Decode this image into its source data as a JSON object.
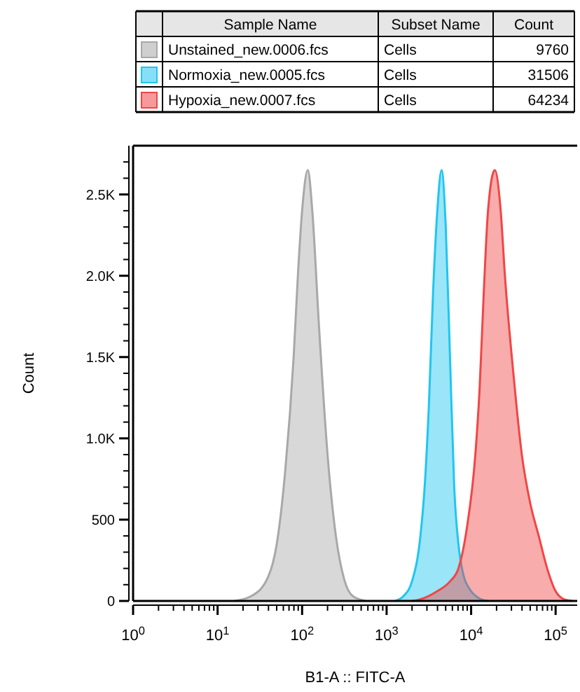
{
  "chart_data": {
    "type": "area",
    "xlabel": "B1-A :: FITC-A",
    "ylabel": "Count",
    "log": "x",
    "legend": "top",
    "grid": false,
    "xlim": [
      1,
      180000
    ],
    "xticks": [
      {
        "value": 1,
        "label": "10$^{0}$"
      },
      {
        "value": 2,
        "label": null
      },
      {
        "value": 3,
        "label": null
      },
      {
        "value": 4,
        "label": null
      },
      {
        "value": 5,
        "label": null
      },
      {
        "value": 6,
        "label": null
      },
      {
        "value": 7,
        "label": null
      },
      {
        "value": 8,
        "label": null
      },
      {
        "value": 9,
        "label": null
      },
      {
        "value": 10,
        "label": "10$^{1}$"
      },
      {
        "value": 20,
        "label": null
      },
      {
        "value": 30,
        "label": null
      },
      {
        "value": 40,
        "label": null
      },
      {
        "value": 50,
        "label": null
      },
      {
        "value": 60,
        "label": null
      },
      {
        "value": 70,
        "label": null
      },
      {
        "value": 80,
        "label": null
      },
      {
        "value": 90,
        "label": null
      },
      {
        "value": 100,
        "label": "10$^{2}$"
      },
      {
        "value": 200,
        "label": null
      },
      {
        "value": 300,
        "label": null
      },
      {
        "value": 400,
        "label": null
      },
      {
        "value": 500,
        "label": null
      },
      {
        "value": 600,
        "label": null
      },
      {
        "value": 700,
        "label": null
      },
      {
        "value": 800,
        "label": null
      },
      {
        "value": 900,
        "label": null
      },
      {
        "value": 1000,
        "label": "10$^{3}$"
      },
      {
        "value": 2000,
        "label": null
      },
      {
        "value": 3000,
        "label": null
      },
      {
        "value": 4000,
        "label": null
      },
      {
        "value": 5000,
        "label": null
      },
      {
        "value": 6000,
        "label": null
      },
      {
        "value": 7000,
        "label": null
      },
      {
        "value": 8000,
        "label": null
      },
      {
        "value": 9000,
        "label": null
      },
      {
        "value": 10000,
        "label": "10$^{4}$"
      },
      {
        "value": 20000,
        "label": null
      },
      {
        "value": 30000,
        "label": null
      },
      {
        "value": 40000,
        "label": null
      },
      {
        "value": 50000,
        "label": null
      },
      {
        "value": 60000,
        "label": null
      },
      {
        "value": 70000,
        "label": null
      },
      {
        "value": 80000,
        "label": null
      },
      {
        "value": 90000,
        "label": null
      },
      {
        "value": 100000,
        "label": "10$^{5}$"
      }
    ],
    "ylim": [
      0,
      2800
    ],
    "yticks": [
      0,
      {
        "value": 100,
        "label": null
      },
      {
        "value": 200,
        "label": null
      },
      {
        "value": 300,
        "label": null
      },
      {
        "value": 400,
        "label": null
      },
      500,
      {
        "value": 600,
        "label": null
      },
      {
        "value": 700,
        "label": null
      },
      {
        "value": 800,
        "label": null
      },
      {
        "value": 900,
        "label": null
      },
      {
        "value": 1000,
        "label": "1.0K"
      },
      {
        "value": 1100,
        "label": null
      },
      {
        "value": 1200,
        "label": null
      },
      {
        "value": 1300,
        "label": null
      },
      {
        "value": 1400,
        "label": null
      },
      {
        "value": 1500,
        "label": "1.5K"
      },
      {
        "value": 1600,
        "label": null
      },
      {
        "value": 1700,
        "label": null
      },
      {
        "value": 1800,
        "label": null
      },
      {
        "value": 1900,
        "label": null
      },
      {
        "value": 2000,
        "label": "2.0K"
      },
      {
        "value": 2100,
        "label": null
      },
      {
        "value": 2200,
        "label": null
      },
      {
        "value": 2300,
        "label": null
      },
      {
        "value": 2400,
        "label": null
      },
      {
        "value": 2500,
        "label": "2.5K"
      },
      {
        "value": 2600,
        "label": null
      },
      {
        "value": 2700,
        "label": null
      }
    ],
    "annotations": [
      "Sample Name",
      "Subset Name",
      "Count",
      "Cells",
      "9760",
      "Cells",
      "31506",
      "Cells",
      "64234"
    ],
    "series": [
      {
        "name": "Unstained_new.0006.fcs",
        "color": "#a8a8a8",
        "x": [
          15.8,
          25.1,
          39.8,
          50.1,
          63.1,
          79.4,
          89.1,
          100,
          117,
          132,
          158,
          200,
          251,
          316,
          398,
          562
        ],
        "values": [
          0,
          30,
          150,
          350,
          800,
          1500,
          2000,
          2400,
          2650,
          2400,
          1700,
          900,
          400,
          130,
          30,
          0
        ]
      },
      {
        "name": "Normoxia_new.0005.fcs",
        "color": "#20c6f0",
        "x": [
          1259,
          1585,
          1995,
          2512,
          2818,
          3162,
          3548,
          3981,
          4467,
          5012,
          5623,
          6310,
          7079,
          7943,
          10000,
          12589,
          15849
        ],
        "values": [
          0,
          30,
          120,
          400,
          700,
          1200,
          1900,
          2400,
          2650,
          2300,
          1500,
          700,
          350,
          180,
          60,
          15,
          0
        ]
      },
      {
        "name": "Hypoxia_new.0007.fcs",
        "color": "#f04646",
        "x": [
          1995,
          2512,
          3981,
          5623,
          7079,
          8913,
          11220,
          12589,
          14125,
          15849,
          19055,
          22387,
          25119,
          31623,
          39811,
          50119,
          63096,
          79433,
          100000,
          125893,
          158489
        ],
        "values": [
          0,
          10,
          60,
          120,
          200,
          450,
          900,
          1300,
          1900,
          2400,
          2650,
          2400,
          2000,
          1400,
          900,
          600,
          400,
          200,
          60,
          10,
          0
        ]
      }
    ]
  }
}
